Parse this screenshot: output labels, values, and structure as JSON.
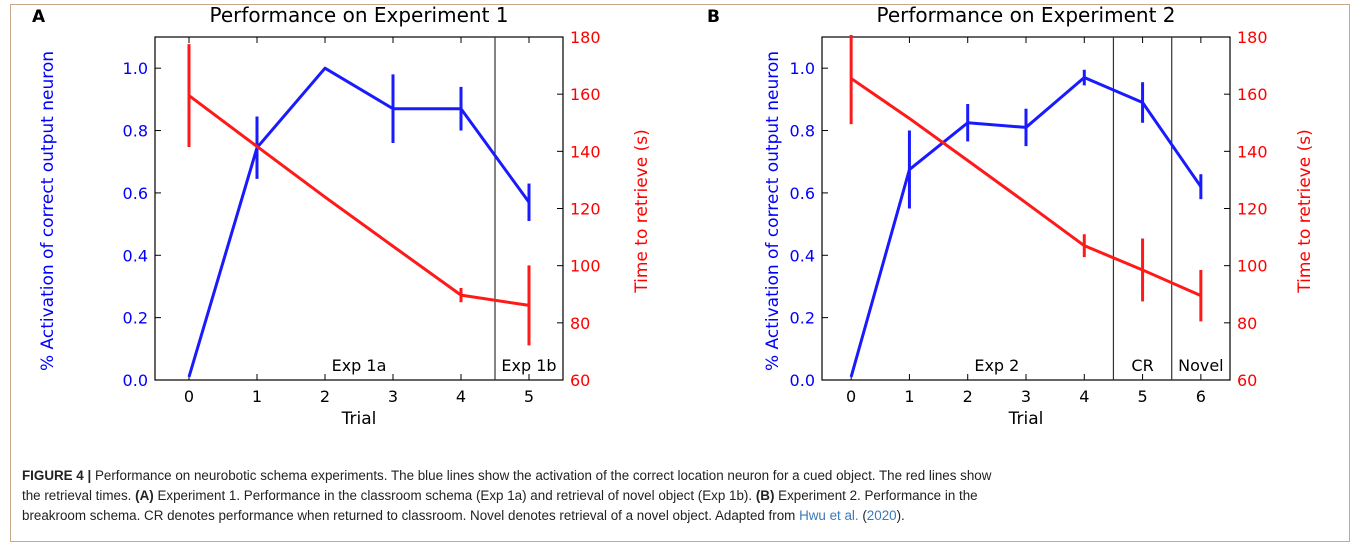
{
  "colors": {
    "left_axis": "#0000ff",
    "right_axis": "#ff0000",
    "activation_line": "#1a1aff",
    "time_line": "#ff1a1a",
    "divider": "#333333",
    "frame": "#c7a889",
    "link": "#3b79b8"
  },
  "chart_data": [
    {
      "panel_letter": "A",
      "type": "line",
      "title": "Performance on Experiment 1",
      "xlabel": "Trial",
      "ylabel_left": "% Activation of correct output neuron",
      "ylabel_right": "Time to retrieve (s)",
      "xlim": [
        -0.5,
        5.5
      ],
      "ylim_left": [
        0.0,
        1.1
      ],
      "ylim_right": [
        60,
        180
      ],
      "x_ticks": [
        0,
        1,
        2,
        3,
        4,
        5
      ],
      "y_ticks_left": [
        "0.0",
        "0.2",
        "0.4",
        "0.6",
        "0.8",
        "1.0"
      ],
      "y_ticks_right": [
        "60",
        "80",
        "100",
        "120",
        "140",
        "160",
        "180"
      ],
      "series": [
        {
          "axis": "left",
          "color": "#1a1aff",
          "x": [
            0,
            1,
            2,
            3,
            4,
            5
          ],
          "y": [
            0.01,
            0.745,
            1.0,
            0.87,
            0.87,
            0.57
          ],
          "err": [
            0,
            0.1,
            0,
            0.11,
            0.07,
            0.06
          ]
        },
        {
          "axis": "right",
          "color": "#ff1a1a",
          "x": [
            0,
            1,
            2,
            3,
            4,
            5
          ],
          "y": [
            159.5,
            141.7,
            124.0,
            106.8,
            89.7,
            86.1
          ],
          "err": [
            18,
            0,
            0,
            0,
            2.5,
            14
          ]
        }
      ],
      "dividers": [
        4.5
      ],
      "region_labels": [
        {
          "text": "Exp 1a",
          "x": 2.5
        },
        {
          "text": "Exp 1b",
          "x": 5.0
        }
      ]
    },
    {
      "panel_letter": "B",
      "type": "line",
      "title": "Performance on Experiment 2",
      "xlabel": "Trial",
      "ylabel_left": "% Activation of correct output neuron",
      "ylabel_right": "Time to retrieve (s)",
      "xlim": [
        -0.5,
        6.5
      ],
      "ylim_left": [
        0.0,
        1.1
      ],
      "ylim_right": [
        60,
        180
      ],
      "x_ticks": [
        0,
        1,
        2,
        3,
        4,
        5,
        6
      ],
      "y_ticks_left": [
        "0.0",
        "0.2",
        "0.4",
        "0.6",
        "0.8",
        "1.0"
      ],
      "y_ticks_right": [
        "60",
        "80",
        "100",
        "120",
        "140",
        "160",
        "180"
      ],
      "series": [
        {
          "axis": "left",
          "color": "#1a1aff",
          "x": [
            0,
            1,
            2,
            3,
            4,
            5,
            6
          ],
          "y": [
            0.01,
            0.675,
            0.825,
            0.81,
            0.97,
            0.89,
            0.62
          ],
          "err": [
            0,
            0.125,
            0.06,
            0.06,
            0.025,
            0.065,
            0.04
          ]
        },
        {
          "axis": "right",
          "color": "#ff1a1a",
          "x": [
            0,
            1,
            2,
            3,
            4,
            5,
            6
          ],
          "y": [
            165.5,
            151.5,
            136.8,
            122.0,
            107.0,
            98.5,
            89.5
          ],
          "err": [
            16,
            0,
            0,
            0,
            4,
            11,
            9
          ]
        }
      ],
      "dividers": [
        4.5,
        5.5
      ],
      "region_labels": [
        {
          "text": "Exp 2",
          "x": 2.5
        },
        {
          "text": "CR",
          "x": 5.0
        },
        {
          "text": "Novel",
          "x": 6.0
        }
      ]
    }
  ],
  "caption": {
    "lead": "FIGURE 4 |",
    "line1_text": " Performance on neurobotic schema experiments. The blue lines show the activation of the correct location neuron for a cued object. The red lines show",
    "line2_a": "the retrieval times. ",
    "line2_ref_a": "(A)",
    "line2_b": " Experiment 1. Performance in the classroom schema (Exp 1a) and retrieval of novel object (Exp 1b). ",
    "line2_ref_b": "(B)",
    "line2_c": " Experiment 2. Performance in the",
    "line3_a": "breakroom schema. CR denotes performance when returned to classroom. Novel denotes retrieval of a novel object. Adapted from ",
    "line3_link": "Hwu et al.",
    "line3_b": " (",
    "line3_year": "2020",
    "line3_c": ")."
  }
}
